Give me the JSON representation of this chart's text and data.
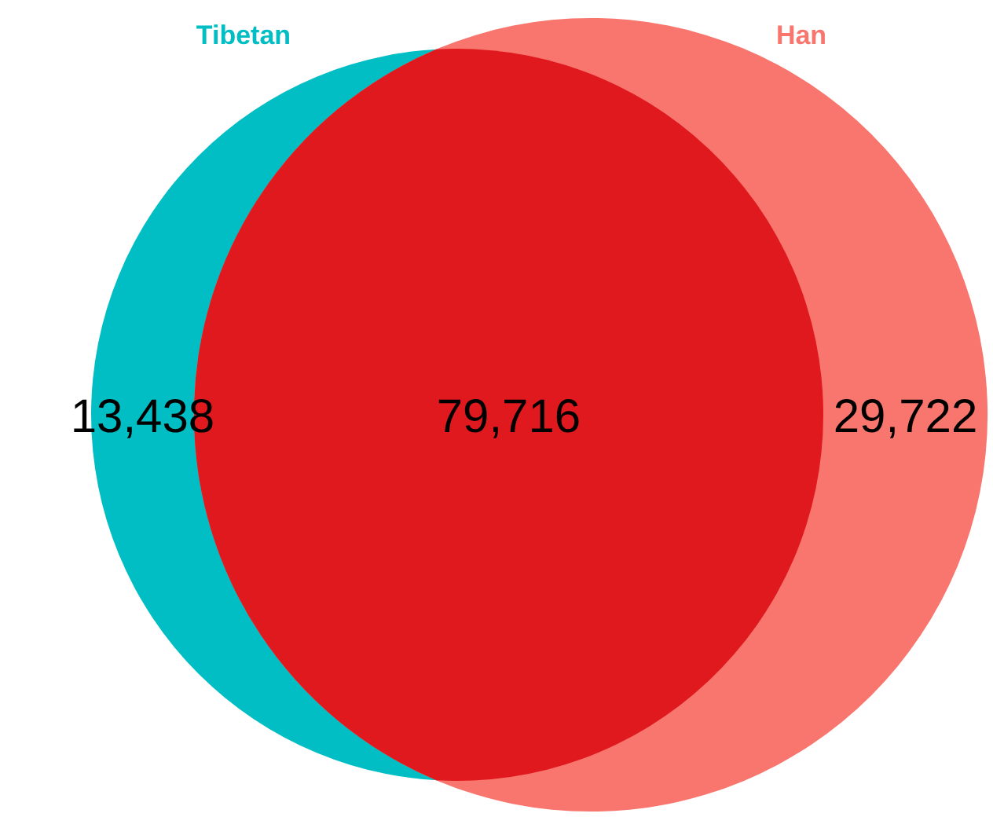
{
  "chart_data": {
    "type": "other",
    "categories": [
      "Tibetan",
      null,
      "Han"
    ],
    "values": [
      13438,
      79716,
      29722
    ],
    "colors": [
      "#00bec4",
      "#e0191e",
      "#f8766d"
    ],
    "value_labels": [
      "13,438",
      "79,716",
      "29,722"
    ]
  }
}
